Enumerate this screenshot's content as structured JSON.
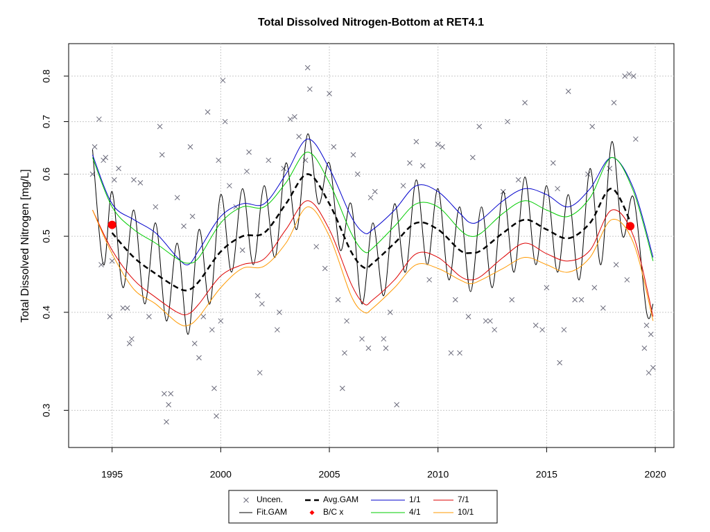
{
  "chart_data": {
    "type": "line",
    "title": "Total Dissolved Nitrogen-Bottom at RET4.1",
    "y_label": "Total Dissolved Nitrogen [mg/L]",
    "log_y": true,
    "grid": true,
    "legend": "bottom",
    "xlim": [
      1993,
      2020.86
    ],
    "xticks": [
      1995,
      2000,
      2005,
      2010,
      2015,
      2020
    ],
    "ylim": [
      0.269,
      0.88
    ],
    "yticks": [
      0.3,
      0.4,
      0.5,
      0.6,
      0.7,
      0.8
    ],
    "x": [
      1994.1,
      1995,
      1996,
      1997,
      1998,
      1998.5,
      1999,
      2000,
      2001,
      2002,
      2003,
      2004,
      2005,
      2006,
      2006.6,
      2007,
      2008,
      2009,
      2010,
      2011,
      2011.5,
      2012,
      2013,
      2014,
      2015,
      2016,
      2017,
      2018,
      2019,
      2019.9
    ],
    "series": [
      {
        "name": "Uncen.",
        "type": "scatter",
        "marker": "x",
        "color": "#6b6b7b",
        "x": [
          1994.1,
          1994.2,
          1994.4,
          1994.5,
          1994.6,
          1994.7,
          1994.9,
          1995.0,
          1995.1,
          1995.3,
          1995.5,
          1995.7,
          1995.8,
          1995.9,
          1996.0,
          1996.3,
          1996.7,
          1997.0,
          1997.2,
          1997.3,
          1997.4,
          1997.5,
          1997.6,
          1997.7,
          1998.0,
          1998.3,
          1998.6,
          1998.7,
          1998.8,
          1999.0,
          1999.2,
          1999.4,
          1999.6,
          1999.7,
          1999.8,
          1999.9,
          2000.0,
          2000.1,
          2000.2,
          2000.4,
          2000.7,
          2001.0,
          2001.2,
          2001.3,
          2001.7,
          2001.8,
          2001.9,
          2002.2,
          2002.6,
          2002.7,
          2002.9,
          2003.2,
          2003.4,
          2003.6,
          2003.9,
          2004.0,
          2004.1,
          2004.4,
          2004.8,
          2005.0,
          2005.2,
          2005.4,
          2005.6,
          2005.7,
          2005.8,
          2006.1,
          2006.3,
          2006.5,
          2006.8,
          2006.9,
          2007.1,
          2007.5,
          2007.6,
          2007.8,
          2008.1,
          2008.4,
          2008.7,
          2009.0,
          2009.3,
          2009.6,
          2010.0,
          2010.2,
          2010.6,
          2010.8,
          2011.0,
          2011.4,
          2011.6,
          2011.9,
          2012.2,
          2012.4,
          2012.6,
          2013.0,
          2013.2,
          2013.4,
          2013.7,
          2014.0,
          2014.5,
          2014.8,
          2015.0,
          2015.3,
          2015.5,
          2015.6,
          2015.8,
          2016.0,
          2016.3,
          2016.6,
          2016.9,
          2017.1,
          2017.2,
          2017.6,
          2017.9,
          2018.1,
          2018.2,
          2018.6,
          2018.7,
          2018.8,
          2019.0,
          2019.1,
          2019.5,
          2019.6,
          2019.7,
          2019.8,
          2019.9
        ],
        "values": [
          0.6,
          0.65,
          0.705,
          0.46,
          0.625,
          0.63,
          0.395,
          0.465,
          0.59,
          0.61,
          0.405,
          0.405,
          0.365,
          0.37,
          0.59,
          0.585,
          0.395,
          0.545,
          0.69,
          0.635,
          0.315,
          0.29,
          0.305,
          0.315,
          0.56,
          0.515,
          0.65,
          0.53,
          0.365,
          0.35,
          0.395,
          0.72,
          0.38,
          0.32,
          0.295,
          0.625,
          0.39,
          0.79,
          0.7,
          0.58,
          0.545,
          0.48,
          0.605,
          0.64,
          0.42,
          0.335,
          0.41,
          0.625,
          0.38,
          0.4,
          0.61,
          0.705,
          0.71,
          0.67,
          0.625,
          0.82,
          0.77,
          0.485,
          0.455,
          0.76,
          0.65,
          0.415,
          0.32,
          0.355,
          0.39,
          0.635,
          0.6,
          0.37,
          0.36,
          0.56,
          0.57,
          0.37,
          0.36,
          0.4,
          0.305,
          0.58,
          0.62,
          0.66,
          0.615,
          0.44,
          0.655,
          0.65,
          0.355,
          0.415,
          0.355,
          0.395,
          0.63,
          0.69,
          0.39,
          0.39,
          0.38,
          0.57,
          0.7,
          0.415,
          0.59,
          0.74,
          0.385,
          0.38,
          0.43,
          0.62,
          0.575,
          0.345,
          0.38,
          0.765,
          0.415,
          0.415,
          0.6,
          0.69,
          0.43,
          0.405,
          0.61,
          0.74,
          0.46,
          0.8,
          0.44,
          0.805,
          0.8,
          0.665,
          0.36,
          0.385,
          0.335,
          0.375,
          0.34
        ]
      },
      {
        "name": "Fit.GAM",
        "type": "line",
        "color": "#000000",
        "width": 1,
        "x": [
          1994.1,
          1994.6,
          1995.0,
          1995.5,
          1996.0,
          1996.5,
          1997.0,
          1997.5,
          1998.0,
          1998.5,
          1999.0,
          1999.5,
          2000.0,
          2000.5,
          2001.0,
          2001.5,
          2002.0,
          2002.5,
          2003.0,
          2003.5,
          2004.0,
          2004.5,
          2005.0,
          2005.5,
          2006.0,
          2006.5,
          2007.0,
          2007.5,
          2008.0,
          2008.5,
          2009.0,
          2009.5,
          2010.0,
          2010.5,
          2011.0,
          2011.5,
          2012.0,
          2012.5,
          2013.0,
          2013.5,
          2014.0,
          2014.5,
          2015.0,
          2015.5,
          2016.0,
          2016.5,
          2017.0,
          2017.5,
          2018.0,
          2018.5,
          2019.0,
          2019.6,
          2019.9
        ],
        "values": [
          0.645,
          0.46,
          0.57,
          0.43,
          0.54,
          0.41,
          0.52,
          0.39,
          0.49,
          0.375,
          0.51,
          0.41,
          0.565,
          0.45,
          0.575,
          0.46,
          0.58,
          0.47,
          0.62,
          0.51,
          0.675,
          0.55,
          0.62,
          0.48,
          0.55,
          0.41,
          0.52,
          0.42,
          0.55,
          0.45,
          0.59,
          0.46,
          0.575,
          0.44,
          0.545,
          0.425,
          0.545,
          0.43,
          0.57,
          0.45,
          0.595,
          0.46,
          0.58,
          0.45,
          0.565,
          0.44,
          0.61,
          0.46,
          0.66,
          0.5,
          0.56,
          0.4,
          0.41
        ]
      },
      {
        "name": "Avg.GAM",
        "type": "line",
        "color": "#000000",
        "width": 2.5,
        "dash": true,
        "values": [
          null,
          0.505,
          0.47,
          0.448,
          0.43,
          0.427,
          0.438,
          0.478,
          0.5,
          0.505,
          0.55,
          0.6,
          0.55,
          0.478,
          0.456,
          0.462,
          0.49,
          0.52,
          0.51,
          0.48,
          0.476,
          0.48,
          0.505,
          0.525,
          0.51,
          0.497,
          0.52,
          0.575,
          0.51,
          null
        ]
      },
      {
        "name": "B/C x",
        "type": "scatter",
        "marker": "dot",
        "color": "#ff0000",
        "x": [
          1995.0,
          2018.85
        ],
        "values": [
          0.517,
          0.515
        ]
      },
      {
        "name": "1/1",
        "type": "line",
        "color": "#0000cc",
        "width": 1,
        "values": [
          0.635,
          0.55,
          0.525,
          0.505,
          0.47,
          0.46,
          0.48,
          0.53,
          0.55,
          0.55,
          0.6,
          0.665,
          0.61,
          0.53,
          0.505,
          0.51,
          0.54,
          0.58,
          0.57,
          0.535,
          0.52,
          0.525,
          0.555,
          0.575,
          0.565,
          0.545,
          0.575,
          0.63,
          0.575,
          0.47
        ]
      },
      {
        "name": "4/1",
        "type": "line",
        "color": "#00cc00",
        "width": 1,
        "values": [
          0.63,
          0.545,
          0.51,
          0.49,
          0.468,
          0.462,
          0.47,
          0.52,
          0.545,
          0.545,
          0.585,
          0.64,
          0.585,
          0.505,
          0.478,
          0.483,
          0.515,
          0.55,
          0.545,
          0.51,
          0.5,
          0.505,
          0.535,
          0.555,
          0.54,
          0.53,
          0.56,
          0.63,
          0.57,
          0.465
        ]
      },
      {
        "name": "7/1",
        "type": "line",
        "color": "#dd0000",
        "width": 1,
        "values": [
          0.54,
          0.48,
          0.44,
          0.418,
          0.4,
          0.398,
          0.41,
          0.445,
          0.46,
          0.468,
          0.51,
          0.555,
          0.51,
          0.435,
          0.41,
          0.415,
          0.44,
          0.475,
          0.47,
          0.445,
          0.44,
          0.445,
          0.47,
          0.49,
          0.475,
          0.465,
          0.48,
          0.54,
          0.5,
          0.395
        ]
      },
      {
        "name": "10/1",
        "type": "line",
        "color": "#ff9900",
        "width": 1,
        "values": [
          0.54,
          0.475,
          0.428,
          0.41,
          0.388,
          0.385,
          0.395,
          0.43,
          0.455,
          0.458,
          0.49,
          0.545,
          0.5,
          0.42,
          0.4,
          0.405,
          0.43,
          0.46,
          0.455,
          0.44,
          0.435,
          0.44,
          0.455,
          0.47,
          0.46,
          0.45,
          0.47,
          0.525,
          0.49,
          0.39
        ]
      }
    ]
  }
}
